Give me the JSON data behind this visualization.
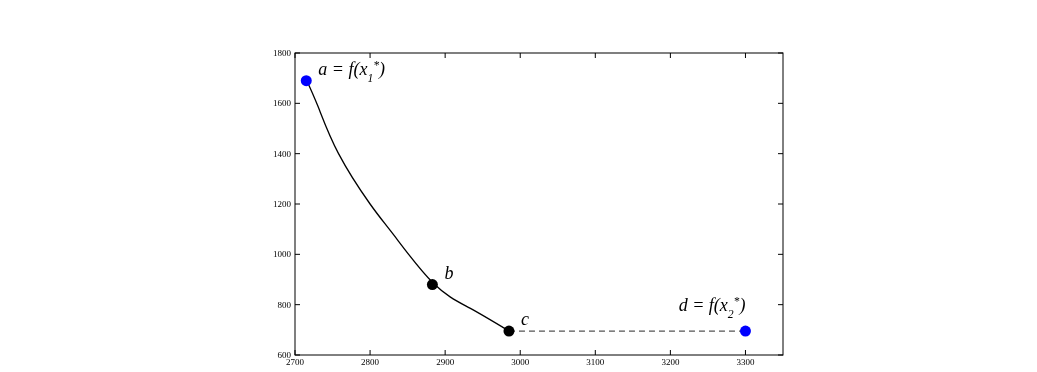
{
  "chart_data": {
    "type": "line",
    "xlim": [
      2700,
      3350
    ],
    "ylim": [
      600,
      1800
    ],
    "xticks": [
      2700,
      2800,
      2900,
      3000,
      3100,
      3200,
      3300
    ],
    "yticks": [
      600,
      800,
      1000,
      1200,
      1400,
      1600,
      1800
    ],
    "grid": false,
    "series": [
      {
        "color": "#000000",
        "line_style": "solid",
        "marker": "none",
        "x": [
          2715,
          2731,
          2758,
          2800,
          2832,
          2884,
          2933,
          2984
        ],
        "values": [
          1695,
          1585,
          1400,
          1200,
          1075,
          886,
          786,
          697
        ]
      },
      {
        "type": "line",
        "color": "#555555",
        "line_style": "dashed",
        "marker": "none",
        "x": [
          2985,
          3300
        ],
        "values": [
          695,
          695
        ]
      },
      {
        "type": "scatter",
        "marker": "circle",
        "x": [
          2715,
          2883,
          2985,
          3300
        ],
        "values": [
          1690,
          880,
          695,
          695
        ],
        "colors": [
          "#0000ff",
          "#000000",
          "#000000",
          "#0000ff"
        ]
      }
    ],
    "annotations": [
      {
        "text": "a = f(x$_{1}$$^{*}$)",
        "x": 2715,
        "y": 1690
      },
      {
        "text": "b",
        "x": 2883,
        "y": 880
      },
      {
        "text": "c",
        "x": 2985,
        "y": 695
      },
      {
        "text": "d = f(x$_{2}$$^{*}$)",
        "x": 3300,
        "y": 695
      }
    ]
  }
}
